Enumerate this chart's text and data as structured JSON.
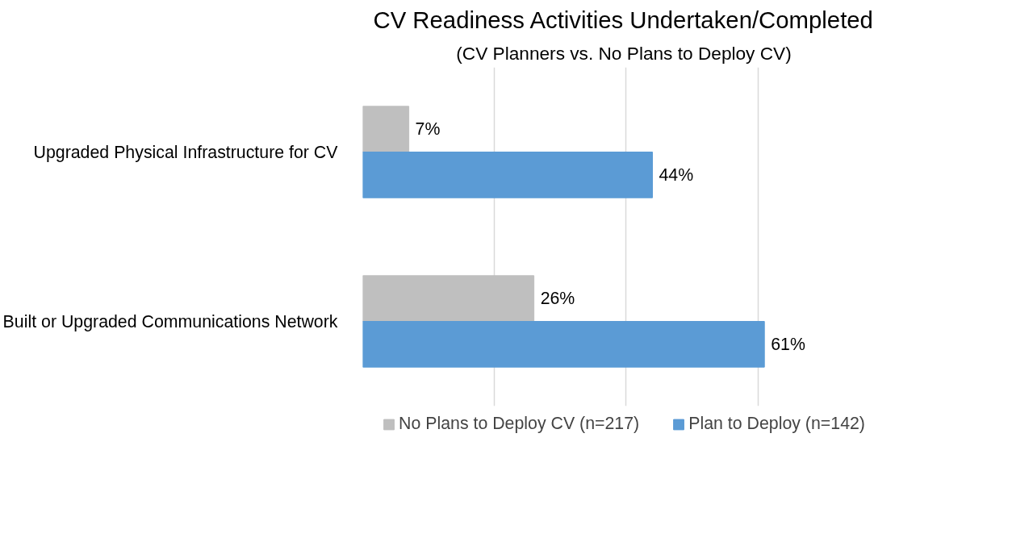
{
  "chart_data": {
    "type": "bar",
    "orientation": "horizontal",
    "title": "CV Readiness Activities Undertaken/Completed",
    "subtitle": "(CV Planners vs. No Plans to Deploy CV)",
    "categories": [
      "Upgraded Physical Infrastructure for CV",
      "Built or Upgraded Communications Network"
    ],
    "series": [
      {
        "name": "No Plans to Deploy CV (n=217)",
        "color": "#bfbfbf",
        "values": [
          7,
          26
        ],
        "value_labels": [
          "7%",
          "26%"
        ]
      },
      {
        "name": "Plan to Deploy (n=142)",
        "color": "#5b9bd5",
        "values": [
          44,
          61
        ],
        "value_labels": [
          "44%",
          "61%"
        ]
      }
    ],
    "grid": "x",
    "legend": "bottom",
    "tick_labels": "y"
  }
}
